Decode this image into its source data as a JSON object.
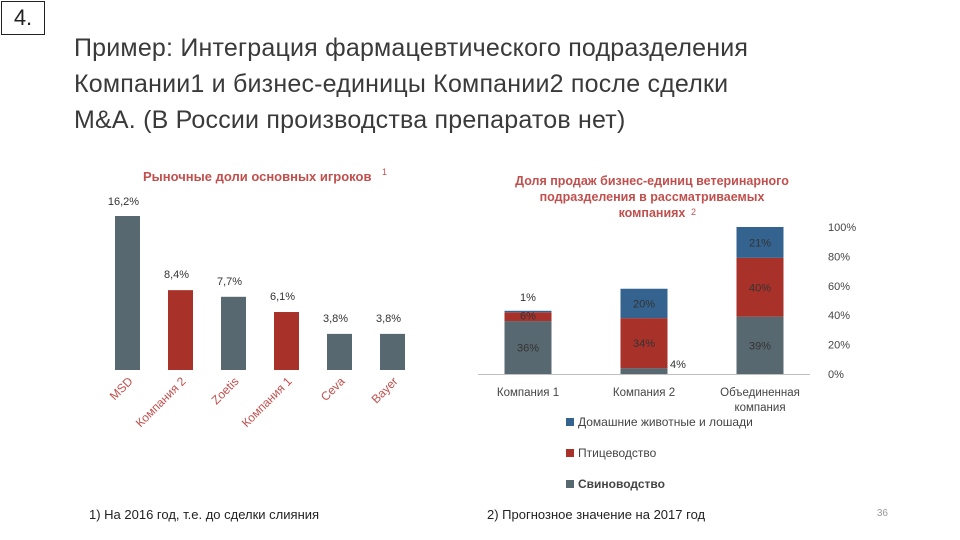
{
  "slide": {
    "number": "4.",
    "title_lines": [
      "Пример: Интеграция фармацевтического подразделения",
      "Компании1 и бизнес-единицы Компании2 после сделки",
      "M&A. (В России производства препаратов нет)"
    ],
    "footnote_left": "1) На 2016 год, т.е. до сделки слияния",
    "footnote_right": "2) Прогнозное значение на 2017 год",
    "page_number": "36"
  },
  "colors": {
    "gray": "#586870",
    "red": "#a8322a",
    "blue": "#35638f",
    "title_red": "#c0504d"
  },
  "chart_data": [
    {
      "type": "bar",
      "title": "Рыночные доли основных игроков",
      "title_superscript": "1",
      "categories": [
        "MSD",
        "Компания 2",
        "Zoetis",
        "Компания 1",
        "Ceva",
        "Bayer"
      ],
      "values": [
        16.2,
        8.4,
        7.7,
        6.1,
        3.8,
        3.8
      ],
      "value_labels": [
        "16,2%",
        "8,4%",
        "7,7%",
        "6,1%",
        "3,8%",
        "3,8%"
      ],
      "bar_colors": [
        "gray",
        "red",
        "gray",
        "red",
        "gray",
        "gray"
      ],
      "ylim": [
        0,
        16.2
      ],
      "grid": false
    },
    {
      "type": "bar",
      "stacked": true,
      "title": "Доля продаж бизнес-единиц ветеринарного подразделения в рассматриваемых компаниях",
      "title_lines": [
        "Доля продаж бизнес-единиц ветеринарного",
        "подразделения в рассматриваемых",
        "компаниях"
      ],
      "title_superscript": "2",
      "categories": [
        "Компания 1",
        "Компания 2",
        "Объединенная компания"
      ],
      "category_lines": [
        [
          "Компания 1"
        ],
        [
          "Компания 2"
        ],
        [
          "Объединенная",
          "компания"
        ]
      ],
      "series": [
        {
          "name": "Свиноводство",
          "color": "gray",
          "values": [
            36,
            4,
            39
          ],
          "labels": [
            "36%",
            "4%",
            "39%"
          ]
        },
        {
          "name": "Птицеводство",
          "color": "red",
          "values": [
            6,
            34,
            40
          ],
          "labels": [
            "6%",
            "34%",
            "40%"
          ]
        },
        {
          "name": "Домашние животные и лошади",
          "color": "blue",
          "values": [
            1,
            20,
            21
          ],
          "labels": [
            "1%",
            "20%",
            "21%"
          ]
        }
      ],
      "legend_order": [
        "Домашние животные и лошади",
        "Птицеводство",
        "Свиноводство"
      ],
      "yticks": [
        "0%",
        "20%",
        "40%",
        "60%",
        "80%",
        "100%"
      ],
      "ylim": [
        0,
        100
      ],
      "legend_position": "bottom",
      "grid": false
    }
  ]
}
